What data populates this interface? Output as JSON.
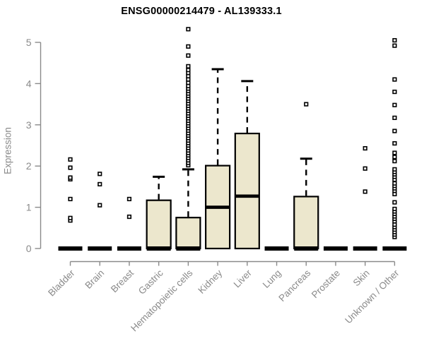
{
  "chart_data": {
    "type": "boxplot",
    "title": "ENSG00000214479 - AL139333.1",
    "ylabel": "Expression",
    "xlabel": "",
    "ylim": [
      0,
      5
    ],
    "yticks": [
      0,
      1,
      2,
      3,
      4,
      5
    ],
    "grid": false,
    "legend": "none",
    "box_fill": "#ece7cd",
    "box_stroke": "#000000",
    "axis_color": "#8a8a8a",
    "tick_label_color": "#8a8a8a",
    "title_color": "#000000",
    "categories": [
      "Bladder",
      "Brain",
      "Breast",
      "Gastric",
      "Hematopoietic cells",
      "Kidney",
      "Liver",
      "Lung",
      "Pancreas",
      "Prostate",
      "Skin",
      "Unknown / Other"
    ],
    "series": [
      {
        "category": "Bladder",
        "q1": 0,
        "median": 0,
        "q3": 0,
        "whisker_low": 0,
        "whisker_high": 0,
        "outliers": [
          0.68,
          0.74,
          1.2,
          1.68,
          1.72,
          1.96,
          2.16
        ]
      },
      {
        "category": "Brain",
        "q1": 0,
        "median": 0,
        "q3": 0,
        "whisker_low": 0,
        "whisker_high": 0,
        "outliers": [
          1.05,
          1.56,
          1.81
        ]
      },
      {
        "category": "Breast",
        "q1": 0,
        "median": 0,
        "q3": 0,
        "whisker_low": 0,
        "whisker_high": 0,
        "outliers": [
          0.77,
          1.2
        ]
      },
      {
        "category": "Gastric",
        "q1": 0,
        "median": 0,
        "q3": 1.17,
        "whisker_low": 0,
        "whisker_high": 1.74,
        "outliers": []
      },
      {
        "category": "Hematopoietic cells",
        "q1": 0,
        "median": 0,
        "q3": 0.75,
        "whisker_low": 0,
        "whisker_high": 1.92,
        "outliers": [
          2.02,
          2.08,
          2.14,
          2.2,
          2.26,
          2.32,
          2.38,
          2.44,
          2.5,
          2.56,
          2.62,
          2.68,
          2.74,
          2.8,
          2.86,
          2.92,
          2.98,
          3.04,
          3.1,
          3.16,
          3.22,
          3.28,
          3.34,
          3.4,
          3.46,
          3.52,
          3.58,
          3.64,
          3.7,
          3.76,
          3.82,
          3.88,
          3.94,
          4.02,
          4.1,
          4.18,
          4.26,
          4.33,
          4.42,
          4.68,
          4.9,
          5.32
        ]
      },
      {
        "category": "Kidney",
        "q1": 0,
        "median": 1.0,
        "q3": 2.01,
        "whisker_low": 0,
        "whisker_high": 4.35,
        "outliers": []
      },
      {
        "category": "Liver",
        "q1": 0,
        "median": 1.27,
        "q3": 2.79,
        "whisker_low": 0,
        "whisker_high": 4.06,
        "outliers": []
      },
      {
        "category": "Lung",
        "q1": 0,
        "median": 0,
        "q3": 0,
        "whisker_low": 0,
        "whisker_high": 0,
        "outliers": []
      },
      {
        "category": "Pancreas",
        "q1": 0,
        "median": 0,
        "q3": 1.26,
        "whisker_low": 0,
        "whisker_high": 2.18,
        "outliers": [
          3.5
        ]
      },
      {
        "category": "Prostate",
        "q1": 0,
        "median": 0,
        "q3": 0,
        "whisker_low": 0,
        "whisker_high": 0,
        "outliers": []
      },
      {
        "category": "Skin",
        "q1": 0,
        "median": 0,
        "q3": 0,
        "whisker_low": 0,
        "whisker_high": 0,
        "outliers": [
          1.38,
          1.94,
          2.43
        ]
      },
      {
        "category": "Unknown / Other",
        "q1": 0,
        "median": 0,
        "q3": 0,
        "whisker_low": 0,
        "whisker_high": 0,
        "outliers": [
          0.28,
          0.34,
          0.4,
          0.46,
          0.52,
          0.58,
          0.66,
          0.72,
          0.78,
          0.84,
          0.9,
          0.96,
          1.12,
          1.32,
          1.4,
          1.46,
          1.52,
          1.58,
          1.67,
          1.74,
          1.8,
          1.86,
          1.92,
          2.12,
          2.22,
          2.32,
          2.55,
          2.85,
          3.17,
          3.48,
          3.8,
          4.1,
          4.92,
          5.05
        ]
      }
    ]
  }
}
